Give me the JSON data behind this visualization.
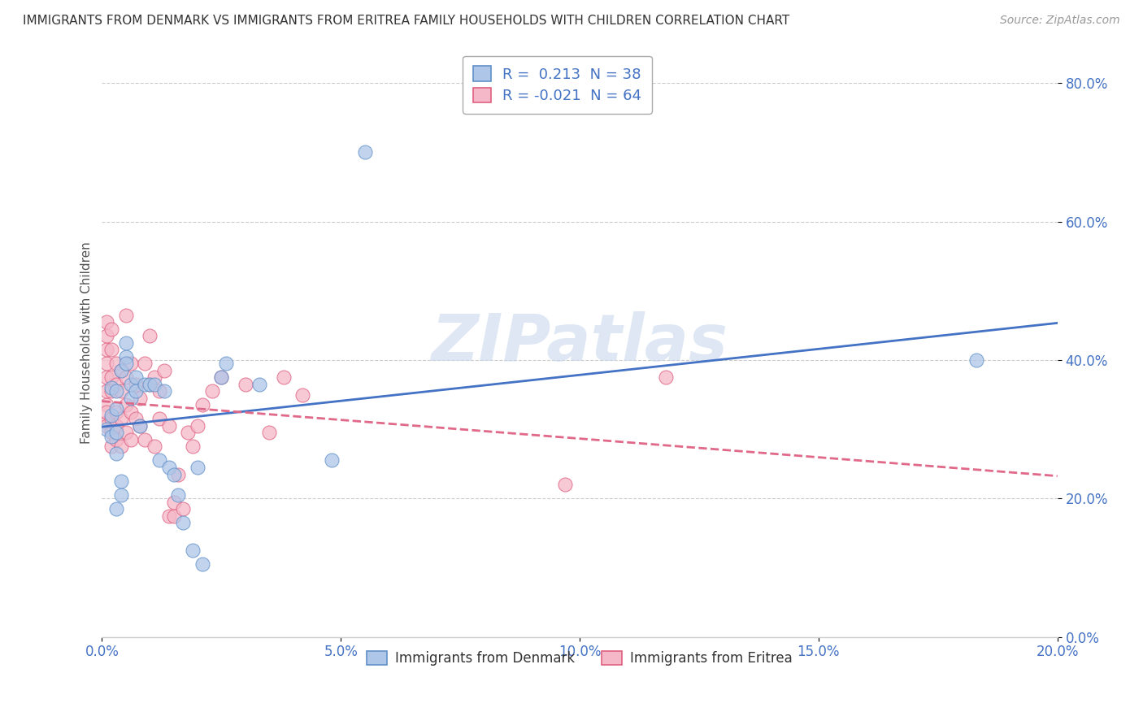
{
  "title": "IMMIGRANTS FROM DENMARK VS IMMIGRANTS FROM ERITREA FAMILY HOUSEHOLDS WITH CHILDREN CORRELATION CHART",
  "source": "Source: ZipAtlas.com",
  "ylabel": "Family Households with Children",
  "xlim": [
    0.0,
    0.2
  ],
  "ylim": [
    0.0,
    0.85
  ],
  "xticks": [
    0.0,
    0.05,
    0.1,
    0.15,
    0.2
  ],
  "xticklabels": [
    "0.0%",
    "5.0%",
    "10.0%",
    "15.0%",
    "20.0%"
  ],
  "yticks": [
    0.0,
    0.2,
    0.4,
    0.6,
    0.8
  ],
  "yticklabels": [
    "0.0%",
    "20.0%",
    "40.0%",
    "60.0%",
    "80.0%"
  ],
  "denmark_color": "#aec6e8",
  "eritrea_color": "#f4b8c8",
  "denmark_edge_color": "#6090c8",
  "eritrea_edge_color": "#e06080",
  "denmark_line_color": "#4472c4",
  "eritrea_line_color": "#e06888",
  "denmark_R": 0.213,
  "denmark_N": 38,
  "eritrea_R": -0.021,
  "eritrea_N": 64,
  "legend_label_denmark": "Immigrants from Denmark",
  "legend_label_eritrea": "Immigrants from Eritrea",
  "watermark": "ZIPatlas",
  "background_color": "#ffffff",
  "grid_color": "#cccccc",
  "denmark_scatter": [
    [
      0.001,
      0.3
    ],
    [
      0.002,
      0.32
    ],
    [
      0.002,
      0.29
    ],
    [
      0.002,
      0.36
    ],
    [
      0.003,
      0.33
    ],
    [
      0.003,
      0.355
    ],
    [
      0.003,
      0.295
    ],
    [
      0.003,
      0.265
    ],
    [
      0.003,
      0.185
    ],
    [
      0.004,
      0.205
    ],
    [
      0.004,
      0.225
    ],
    [
      0.004,
      0.385
    ],
    [
      0.005,
      0.405
    ],
    [
      0.005,
      0.425
    ],
    [
      0.005,
      0.395
    ],
    [
      0.006,
      0.365
    ],
    [
      0.006,
      0.345
    ],
    [
      0.007,
      0.375
    ],
    [
      0.007,
      0.355
    ],
    [
      0.008,
      0.305
    ],
    [
      0.009,
      0.365
    ],
    [
      0.01,
      0.365
    ],
    [
      0.011,
      0.365
    ],
    [
      0.012,
      0.255
    ],
    [
      0.013,
      0.355
    ],
    [
      0.014,
      0.245
    ],
    [
      0.015,
      0.235
    ],
    [
      0.016,
      0.205
    ],
    [
      0.017,
      0.165
    ],
    [
      0.019,
      0.125
    ],
    [
      0.02,
      0.245
    ],
    [
      0.021,
      0.105
    ],
    [
      0.025,
      0.375
    ],
    [
      0.026,
      0.395
    ],
    [
      0.033,
      0.365
    ],
    [
      0.048,
      0.255
    ],
    [
      0.055,
      0.7
    ],
    [
      0.183,
      0.4
    ]
  ],
  "eritrea_scatter": [
    [
      0.001,
      0.31
    ],
    [
      0.001,
      0.335
    ],
    [
      0.001,
      0.355
    ],
    [
      0.001,
      0.375
    ],
    [
      0.001,
      0.395
    ],
    [
      0.001,
      0.415
    ],
    [
      0.001,
      0.435
    ],
    [
      0.001,
      0.455
    ],
    [
      0.001,
      0.325
    ],
    [
      0.001,
      0.305
    ],
    [
      0.002,
      0.275
    ],
    [
      0.002,
      0.295
    ],
    [
      0.002,
      0.315
    ],
    [
      0.002,
      0.355
    ],
    [
      0.002,
      0.375
    ],
    [
      0.002,
      0.415
    ],
    [
      0.002,
      0.445
    ],
    [
      0.003,
      0.285
    ],
    [
      0.003,
      0.305
    ],
    [
      0.003,
      0.325
    ],
    [
      0.003,
      0.365
    ],
    [
      0.003,
      0.395
    ],
    [
      0.004,
      0.275
    ],
    [
      0.004,
      0.315
    ],
    [
      0.004,
      0.355
    ],
    [
      0.004,
      0.385
    ],
    [
      0.005,
      0.295
    ],
    [
      0.005,
      0.335
    ],
    [
      0.005,
      0.375
    ],
    [
      0.005,
      0.465
    ],
    [
      0.006,
      0.285
    ],
    [
      0.006,
      0.325
    ],
    [
      0.006,
      0.395
    ],
    [
      0.007,
      0.315
    ],
    [
      0.007,
      0.365
    ],
    [
      0.008,
      0.305
    ],
    [
      0.008,
      0.345
    ],
    [
      0.009,
      0.285
    ],
    [
      0.009,
      0.395
    ],
    [
      0.01,
      0.365
    ],
    [
      0.01,
      0.435
    ],
    [
      0.011,
      0.275
    ],
    [
      0.011,
      0.375
    ],
    [
      0.012,
      0.315
    ],
    [
      0.012,
      0.355
    ],
    [
      0.013,
      0.385
    ],
    [
      0.014,
      0.305
    ],
    [
      0.014,
      0.175
    ],
    [
      0.015,
      0.175
    ],
    [
      0.015,
      0.195
    ],
    [
      0.016,
      0.235
    ],
    [
      0.017,
      0.185
    ],
    [
      0.018,
      0.295
    ],
    [
      0.019,
      0.275
    ],
    [
      0.02,
      0.305
    ],
    [
      0.021,
      0.335
    ],
    [
      0.023,
      0.355
    ],
    [
      0.025,
      0.375
    ],
    [
      0.03,
      0.365
    ],
    [
      0.035,
      0.295
    ],
    [
      0.038,
      0.375
    ],
    [
      0.042,
      0.35
    ],
    [
      0.097,
      0.22
    ],
    [
      0.118,
      0.375
    ]
  ],
  "title_fontsize": 11,
  "axis_label_fontsize": 11,
  "tick_fontsize": 12,
  "legend_fontsize": 13,
  "source_fontsize": 10
}
